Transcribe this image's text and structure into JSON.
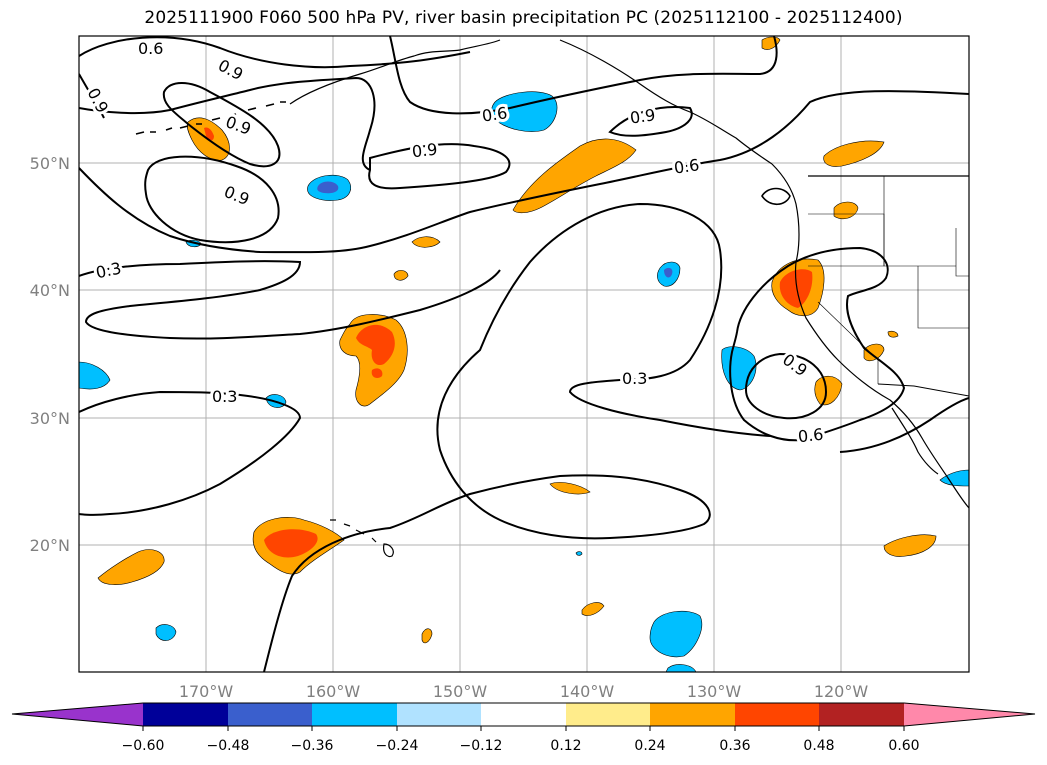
{
  "title": "2025111900 F060 500 hPa PV, river basin precipitation PC (2025112100 - 2025112400)",
  "axes": {
    "lat_labels": [
      "50°N",
      "40°N",
      "30°N",
      "20°N"
    ],
    "lon_labels": [
      "170°W",
      "160°W",
      "150°W",
      "140°W",
      "130°W",
      "120°W"
    ]
  },
  "contour_labels": [
    "0.9",
    "0.9",
    "0.9",
    "0.9",
    "0.9",
    "0.9",
    "0.9",
    "0.6",
    "0.6",
    "0.6",
    "0.3",
    "0.3",
    "0.3",
    "0.6"
  ],
  "colorbar": {
    "colors": [
      "#9933cc",
      "#000099",
      "#3a5fcd",
      "#00bfff",
      "#b0e2ff",
      "#ffffff",
      "#ffec8b",
      "#ffa500",
      "#ff4500",
      "#b22222",
      "#ff88aa"
    ],
    "tick_labels": [
      "−0.60",
      "−0.48",
      "−0.36",
      "−0.24",
      "−0.12",
      "0.12",
      "0.24",
      "0.36",
      "0.48",
      "0.60"
    ]
  }
}
